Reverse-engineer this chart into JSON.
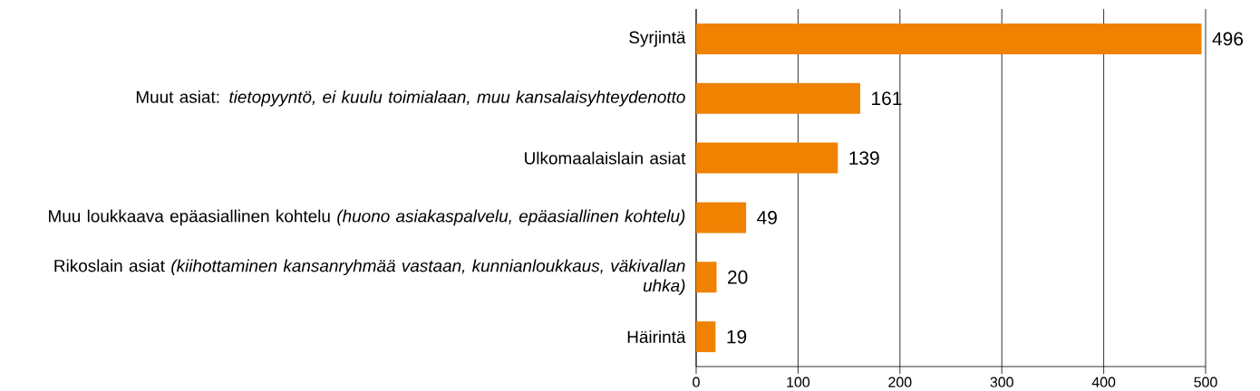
{
  "chart_data": {
    "type": "bar",
    "orientation": "horizontal",
    "categories": [
      "Syrjintä",
      "Muut asiat: *tietopyyntö, ei kuulu toimialaan, muu kansalaisyhteydenotto*",
      "Ulkomaalaislain asiat",
      "Muu loukkaava epäasiallinen kohtelu *(huono asiakaspalvelu, epäasiallinen kohtelu)*",
      "Rikoslain asiat *(kiihottaminen kansanryhmää vastaan, kunnianloukkaus, väkivallan uhka)*",
      "Häirintä"
    ],
    "values": [
      496,
      161,
      139,
      49,
      20,
      19
    ],
    "color": "#ef8200",
    "xlim": [
      0,
      500
    ],
    "xticks": [
      0,
      100,
      200,
      300,
      400,
      500
    ],
    "grid": "x",
    "data_labels": true
  }
}
